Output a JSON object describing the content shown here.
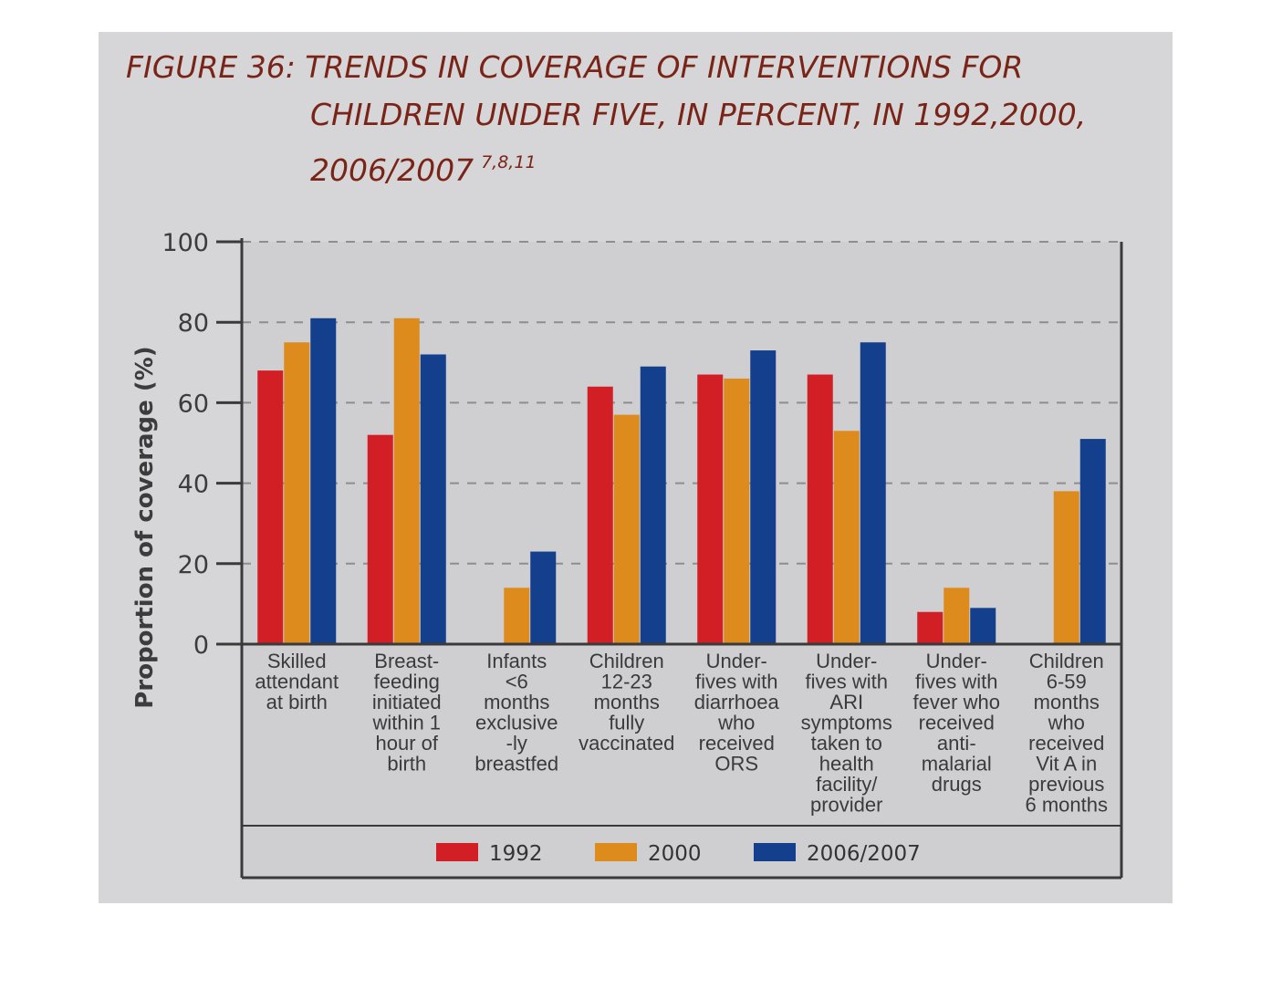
{
  "figure": {
    "title_lines": [
      "FIGURE 36: TRENDS IN COVERAGE OF INTERVENTIONS FOR",
      "CHILDREN UNDER FIVE, IN PERCENT, IN 1992,2000,",
      "2006/2007"
    ],
    "title_superscript": "7,8,11"
  },
  "colors": {
    "panel_background": "#d6d6d8",
    "plot_background": "#cfcfd2",
    "title_text": "#7a2418",
    "series_1992": "#d11f25",
    "series_2000": "#dc8b1c",
    "series_2006_2007": "#143f8c",
    "gridline": "#8e8e8e",
    "axis_line": "#3a3a3a"
  },
  "chart_data": {
    "type": "bar",
    "ylabel": "Proportion of coverage (%)",
    "xlabel": "",
    "ylim": [
      0,
      100
    ],
    "yticks": [
      0,
      20,
      40,
      60,
      80,
      100
    ],
    "grid": "dashed horizontal",
    "legend_position": "bottom",
    "categories": [
      [
        "Skilled",
        "attendant",
        "at birth"
      ],
      [
        "Breast-",
        "feeding",
        "initiated",
        "within 1",
        "hour of",
        "birth"
      ],
      [
        "Infants",
        "<6",
        "months",
        "exclusive",
        "-ly",
        "breastfed"
      ],
      [
        "Children",
        "12-23",
        "months",
        "fully",
        "vaccinated"
      ],
      [
        "Under-",
        "fives with",
        "diarrhoea",
        "who",
        "received",
        "ORS"
      ],
      [
        "Under-",
        "fives with",
        "ARI",
        "symptoms",
        "taken to",
        "health",
        "facility/",
        "provider"
      ],
      [
        "Under-",
        "fives with",
        "fever who",
        "received",
        "anti-",
        "malarial",
        "drugs"
      ],
      [
        "Children",
        "6-59",
        "months",
        "who",
        "received",
        "Vit A in",
        "previous",
        "6 months"
      ]
    ],
    "series": [
      {
        "name": "1992",
        "values": [
          68,
          52,
          null,
          64,
          67,
          67,
          8,
          null
        ]
      },
      {
        "name": "2000",
        "values": [
          75,
          81,
          14,
          57,
          66,
          53,
          14,
          38
        ]
      },
      {
        "name": "2006/2007",
        "values": [
          81,
          72,
          23,
          69,
          73,
          75,
          9,
          51
        ]
      }
    ]
  }
}
